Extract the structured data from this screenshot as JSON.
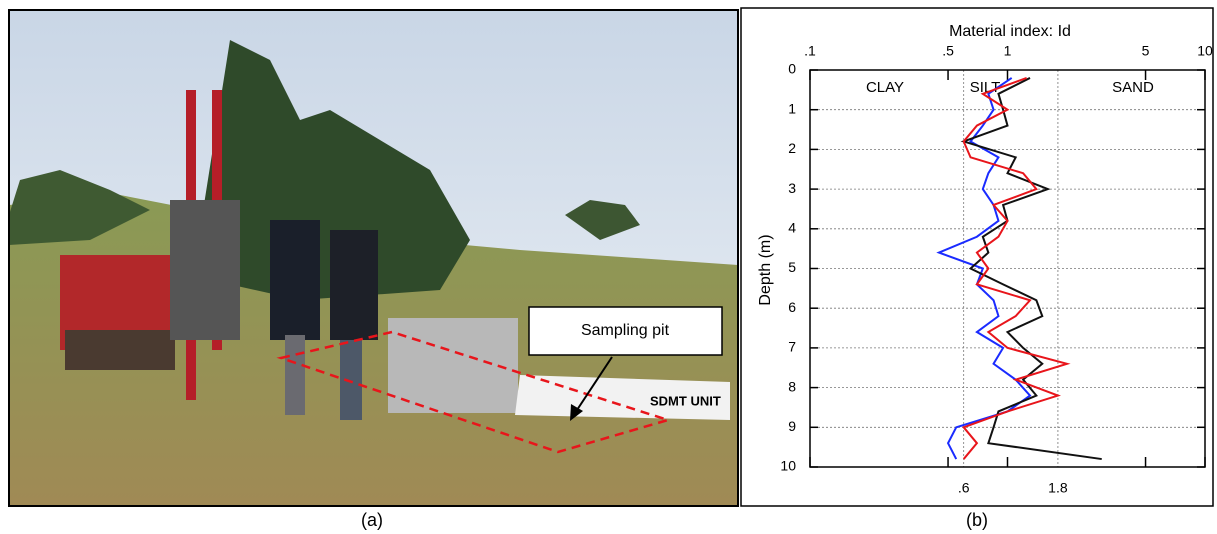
{
  "caption_a": "(a)",
  "caption_b": "(b)",
  "photo": {
    "callout": "Sampling pit",
    "sign": "SDMT UNIT"
  },
  "chart_data": {
    "type": "line",
    "title": "Material index: Id",
    "y_label": "Depth (m)",
    "zones": [
      "CLAY",
      "SILT",
      "SAND"
    ],
    "log_x": true,
    "xlim": [
      0.1,
      10
    ],
    "xticks": [
      {
        "value": 0.1,
        "label": ".1"
      },
      {
        "value": 0.5,
        "label": ".5"
      },
      1,
      5,
      10
    ],
    "boundaries": [
      {
        "value": 0.6,
        "label": ".6"
      },
      {
        "value": 1.8,
        "label": "1.8"
      }
    ],
    "ylim": [
      0,
      10
    ],
    "yticks": [
      0,
      1,
      2,
      3,
      4,
      5,
      6,
      7,
      8,
      9,
      10
    ],
    "grid": true,
    "depth": [
      0.2,
      0.6,
      1.0,
      1.4,
      1.8,
      2.2,
      2.6,
      3.0,
      3.4,
      3.8,
      4.2,
      4.6,
      5.0,
      5.4,
      5.8,
      6.2,
      6.6,
      7.0,
      7.4,
      7.8,
      8.2,
      8.6,
      9.0,
      9.4,
      9.8
    ],
    "series": [
      {
        "color": "#1a2bff",
        "values": [
          1.05,
          0.8,
          0.85,
          0.75,
          0.65,
          0.9,
          0.8,
          0.75,
          0.85,
          0.9,
          0.7,
          0.45,
          0.75,
          0.7,
          0.85,
          0.9,
          0.7,
          0.95,
          0.85,
          1.1,
          1.3,
          1.0,
          0.55,
          0.5,
          0.55
        ]
      },
      {
        "color": "#111111",
        "values": [
          1.3,
          0.9,
          0.95,
          1.0,
          0.6,
          1.1,
          1.0,
          1.6,
          0.95,
          1.0,
          0.75,
          0.8,
          0.65,
          0.95,
          1.4,
          1.5,
          1.0,
          1.2,
          1.5,
          1.2,
          1.4,
          0.9,
          0.85,
          0.8,
          3.0
        ]
      },
      {
        "color": "#e8151b",
        "values": [
          1.25,
          0.75,
          1.0,
          0.7,
          0.6,
          0.65,
          1.2,
          1.4,
          0.85,
          1.0,
          0.9,
          0.7,
          0.8,
          0.7,
          1.3,
          1.1,
          0.8,
          1.0,
          2.0,
          1.1,
          1.8,
          1.0,
          0.6,
          0.7,
          0.6
        ]
      }
    ]
  }
}
